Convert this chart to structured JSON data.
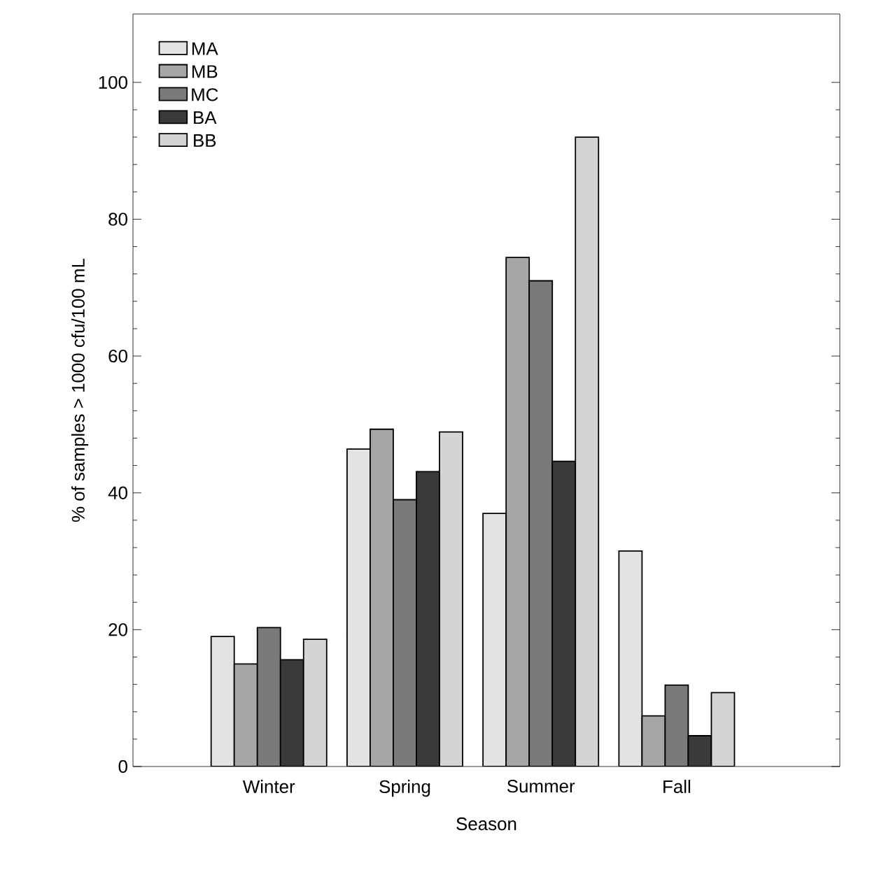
{
  "chart_data": {
    "type": "bar",
    "xlabel": "Season",
    "ylabel": "% of samples > 1000 cfu/100 mL",
    "categories": [
      "Winter",
      "Spring",
      "Summer",
      "Fall"
    ],
    "series": [
      {
        "name": "MA",
        "color": "#e3e3e3",
        "values": [
          19,
          46.4,
          37,
          31.5
        ]
      },
      {
        "name": "MB",
        "color": "#a6a6a6",
        "values": [
          15,
          49.3,
          74.4,
          7.4
        ]
      },
      {
        "name": "MC",
        "color": "#7a7a7a",
        "values": [
          20.3,
          39,
          71,
          11.9
        ]
      },
      {
        "name": "BA",
        "color": "#3a3a3a",
        "values": [
          15.6,
          43.1,
          44.6,
          4.5
        ]
      },
      {
        "name": "BB",
        "color": "#d4d4d4",
        "values": [
          18.6,
          48.9,
          92,
          10.8
        ]
      }
    ],
    "ylim": [
      0,
      110
    ],
    "yticks": [
      0,
      20,
      40,
      60,
      80,
      100
    ],
    "legend": "top left",
    "grid": false
  }
}
